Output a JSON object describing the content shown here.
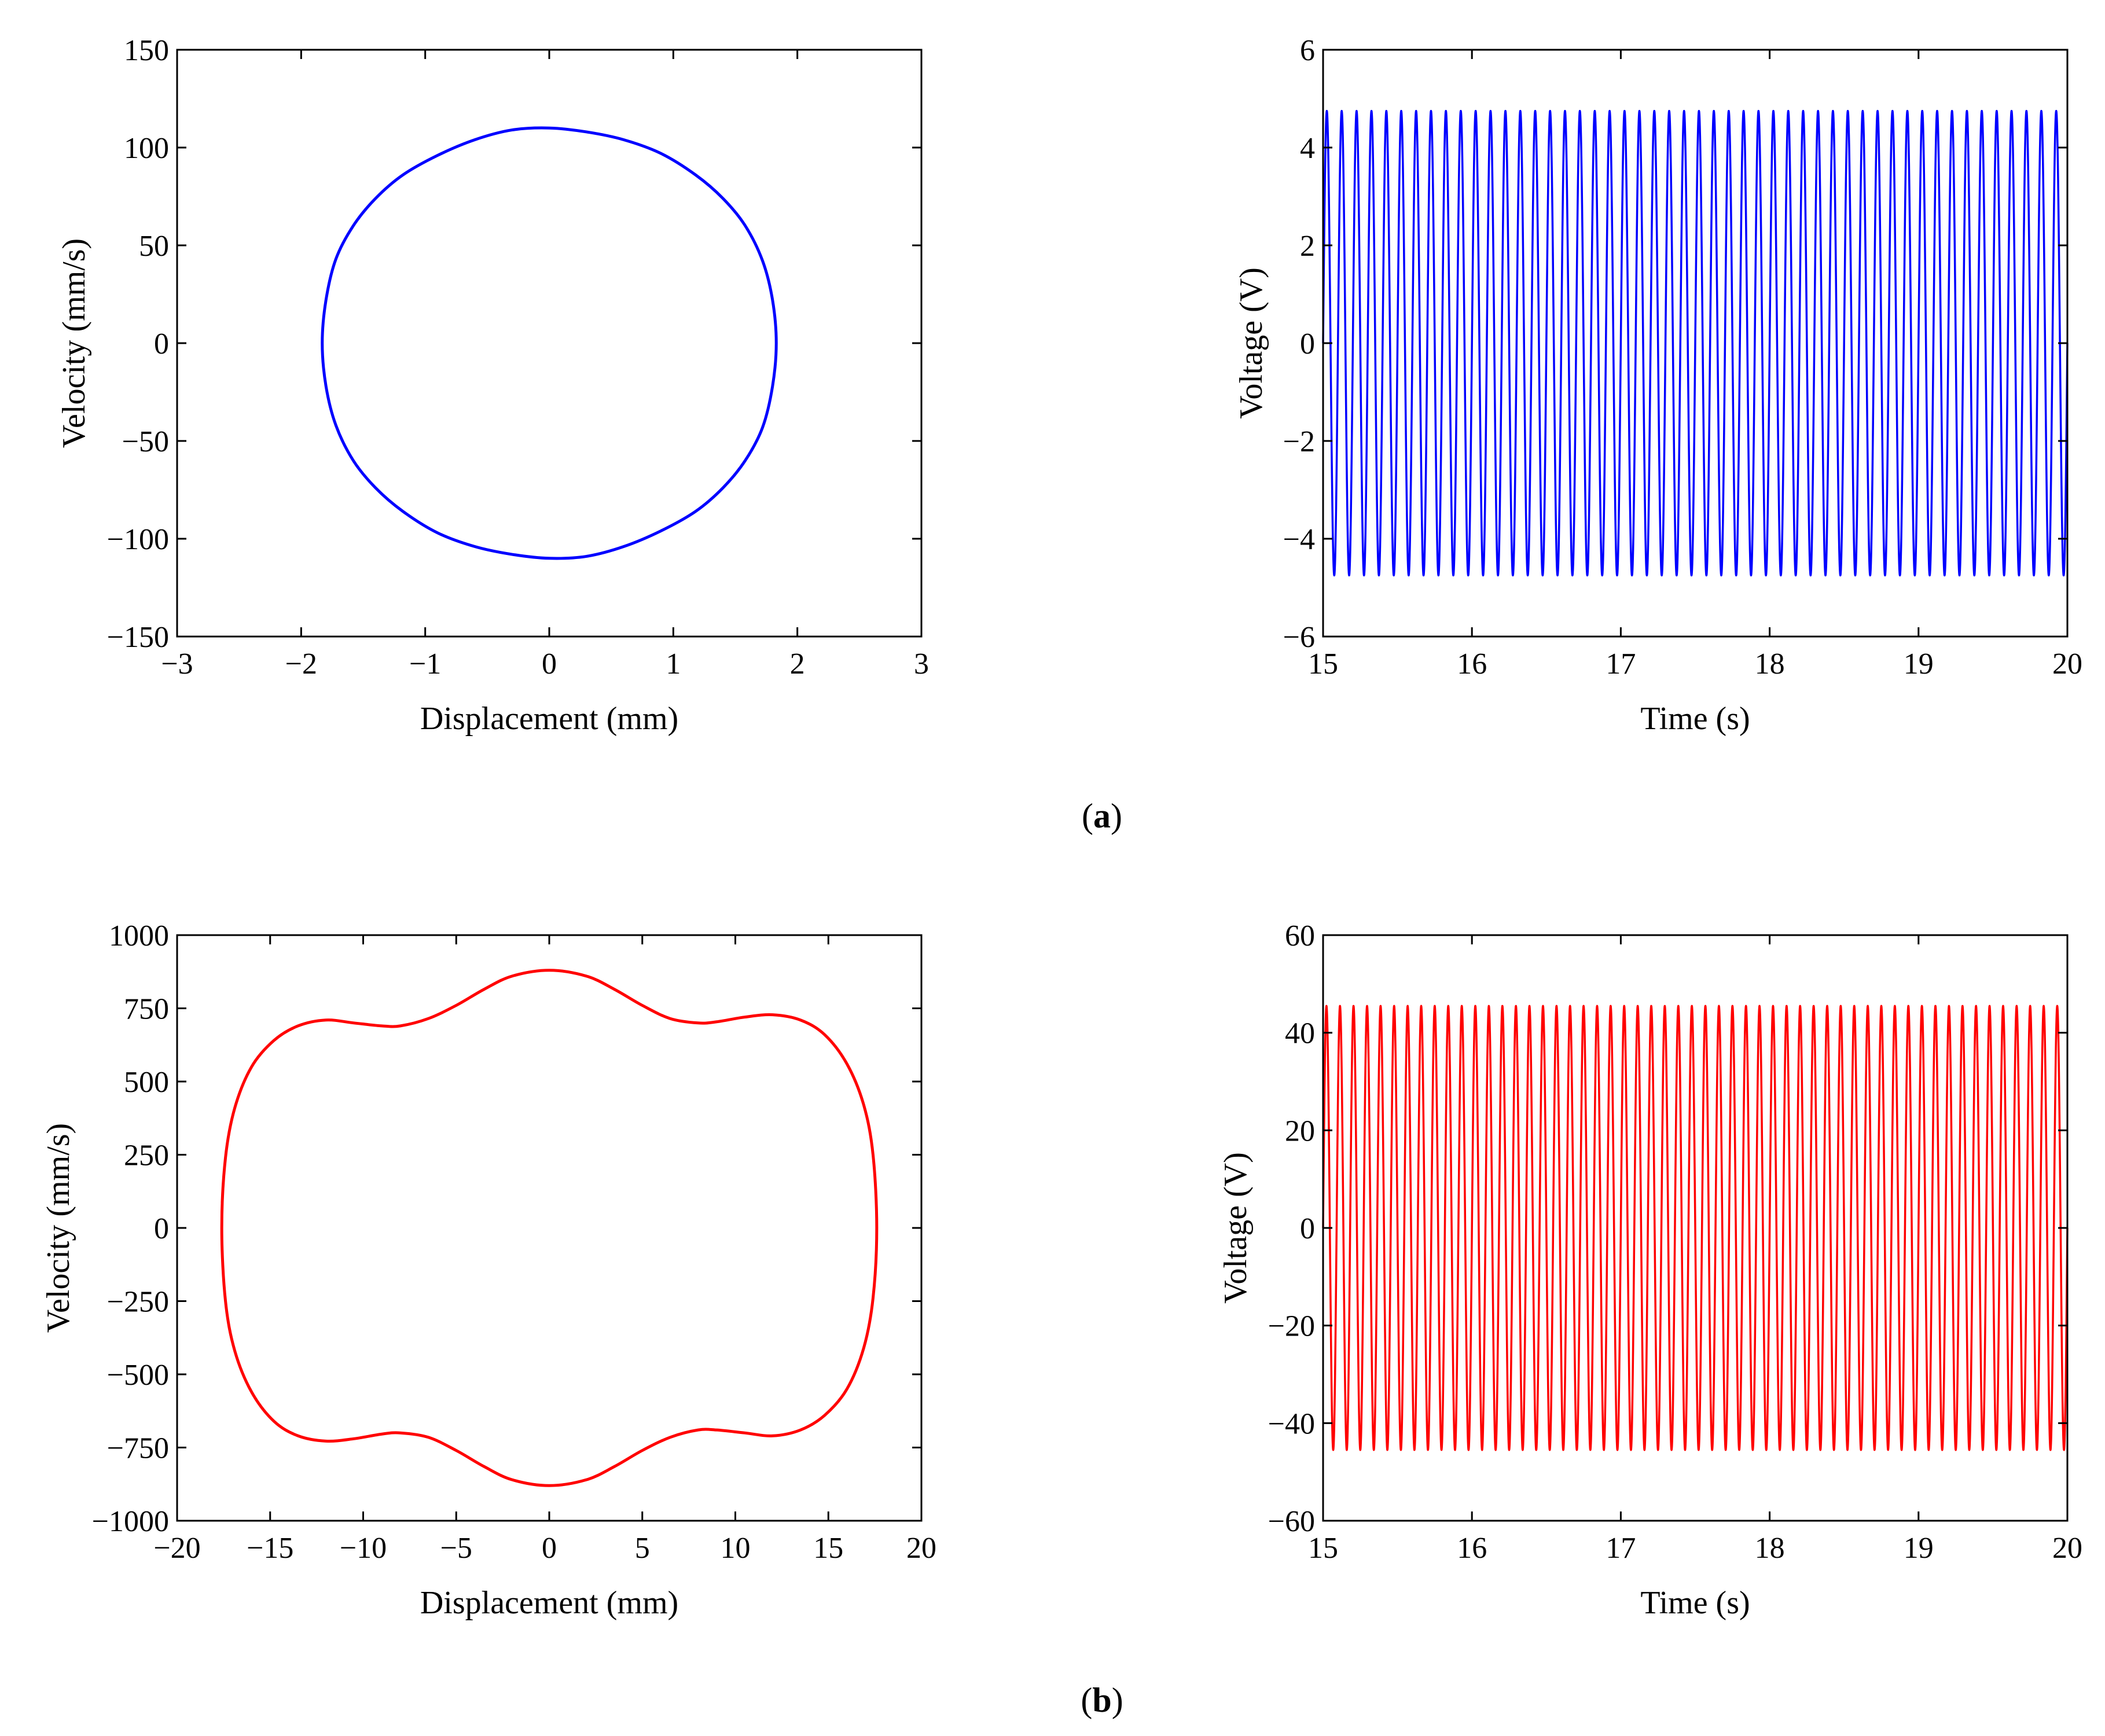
{
  "colors": {
    "row_a": "#0000ff",
    "row_b": "#ff0000",
    "axis": "#000000"
  },
  "panel_captions": [
    {
      "open": "(",
      "letter": "a",
      "close": ")"
    },
    {
      "open": "(",
      "letter": "b",
      "close": ")"
    }
  ],
  "chart_data": [
    {
      "id": "a-phase",
      "type": "line",
      "row": "a",
      "xlabel": "Displacement (mm)",
      "ylabel": "Velocity (mm/s)",
      "xlim": [
        -3,
        3
      ],
      "ylim": [
        -150,
        150
      ],
      "xticks": [
        -3,
        -2,
        -1,
        0,
        1,
        2,
        3
      ],
      "yticks": [
        -150,
        -100,
        -50,
        0,
        50,
        100,
        150
      ],
      "xtick_labels": [
        "−3",
        "−2",
        "−1",
        "0",
        "1",
        "2",
        "3"
      ],
      "ytick_labels": [
        "−150",
        "−100",
        "−50",
        "0",
        "50",
        "100",
        "150"
      ],
      "grid": false,
      "color": "#0000ff",
      "series": [
        {
          "closed": true,
          "x": [
            1.83,
            1.8,
            1.72,
            1.58,
            1.4,
            1.18,
            0.9,
            0.6,
            0.3,
            0.0,
            -0.3,
            -0.6,
            -0.9,
            -1.18,
            -1.4,
            -1.58,
            -1.72,
            -1.8,
            -1.83,
            -1.8,
            -1.72,
            -1.58,
            -1.4,
            -1.18,
            -0.9,
            -0.6,
            -0.3,
            0.0,
            0.3,
            0.6,
            0.9,
            1.18,
            1.4,
            1.58,
            1.72,
            1.8
          ],
          "y": [
            0,
            22,
            42,
            60,
            74,
            86,
            97,
            104,
            108,
            110,
            109,
            104,
            96,
            86,
            74,
            60,
            43,
            22,
            0,
            -22,
            -42,
            -60,
            -74,
            -86,
            -97,
            -104,
            -108,
            -110,
            -109,
            -104,
            -96,
            -86,
            -74,
            -60,
            -43,
            -22
          ]
        }
      ]
    },
    {
      "id": "a-voltage",
      "type": "line",
      "row": "a",
      "xlabel": "Time (s)",
      "ylabel": "Voltage (V)",
      "xlim": [
        15,
        20
      ],
      "ylim": [
        -6,
        6
      ],
      "xticks": [
        15,
        16,
        17,
        18,
        19,
        20
      ],
      "yticks": [
        -6,
        -4,
        -2,
        0,
        2,
        4,
        6
      ],
      "xtick_labels": [
        "15",
        "16",
        "17",
        "18",
        "19",
        "20"
      ],
      "ytick_labels": [
        "−6",
        "−4",
        "−2",
        "0",
        "2",
        "4",
        "6"
      ],
      "grid": false,
      "color": "#0000ff",
      "series": [
        {
          "waveform": "sine",
          "amplitude": 4.75,
          "frequency_hz": 10,
          "t_start": 15,
          "t_end": 20
        }
      ]
    },
    {
      "id": "b-phase",
      "type": "line",
      "row": "b",
      "xlabel": "Displacement (mm)",
      "ylabel": "Velocity (mm/s)",
      "xlim": [
        -20,
        20
      ],
      "ylim": [
        -1000,
        1000
      ],
      "xticks": [
        -20,
        -15,
        -10,
        -5,
        0,
        5,
        10,
        15,
        20
      ],
      "yticks": [
        -1000,
        -750,
        -500,
        -250,
        0,
        250,
        500,
        750,
        1000
      ],
      "xtick_labels": [
        "−20",
        "−15",
        "−10",
        "−5",
        "0",
        "5",
        "10",
        "15",
        "20"
      ],
      "ytick_labels": [
        "−1000",
        "−750",
        "−500",
        "−250",
        "0",
        "250",
        "500",
        "750",
        "1000"
      ],
      "grid": false,
      "color": "#ff0000",
      "series": [
        {
          "closed": true,
          "x": [
            17.6,
            17.4,
            16.9,
            16.0,
            14.8,
            13.5,
            12.0,
            10.5,
            9.0,
            8.0,
            6.5,
            5.0,
            3.5,
            2.0,
            0.0,
            -2.0,
            -3.5,
            -5.0,
            -6.5,
            -8.0,
            -9.0,
            -10.5,
            -12.0,
            -13.5,
            -14.8,
            -16.0,
            -16.9,
            -17.4,
            -17.6,
            -17.4,
            -16.9,
            -16.0,
            -14.8,
            -13.5,
            -12.0,
            -10.5,
            -9.0,
            -8.0,
            -6.5,
            -5.0,
            -3.5,
            -2.0,
            0.0,
            2.0,
            3.5,
            5.0,
            6.5,
            8.0,
            9.0,
            10.5,
            12.0,
            13.5,
            14.8,
            16.0,
            16.9,
            17.4
          ],
          "y": [
            0,
            250,
            420,
            560,
            660,
            710,
            728,
            720,
            704,
            700,
            715,
            760,
            815,
            860,
            880,
            860,
            815,
            760,
            715,
            690,
            690,
            700,
            710,
            690,
            640,
            550,
            410,
            240,
            0,
            -250,
            -420,
            -560,
            -660,
            -710,
            -728,
            -720,
            -704,
            -700,
            -715,
            -760,
            -815,
            -860,
            -880,
            -860,
            -815,
            -760,
            -715,
            -690,
            -690,
            -700,
            -710,
            -690,
            -640,
            -550,
            -410,
            -240
          ]
        }
      ]
    },
    {
      "id": "b-voltage",
      "type": "line",
      "row": "b",
      "xlabel": "Time (s)",
      "ylabel": "Voltage (V)",
      "xlim": [
        15,
        20
      ],
      "ylim": [
        -60,
        60
      ],
      "xticks": [
        15,
        16,
        17,
        18,
        19,
        20
      ],
      "yticks": [
        -60,
        -40,
        -20,
        0,
        20,
        40,
        60
      ],
      "xtick_labels": [
        "15",
        "16",
        "17",
        "18",
        "19",
        "20"
      ],
      "ytick_labels": [
        "−60",
        "−40",
        "−20",
        "0",
        "20",
        "40",
        "60"
      ],
      "grid": false,
      "color": "#ff0000",
      "series": [
        {
          "waveform": "sine",
          "amplitude": 45.5,
          "frequency_hz": 11,
          "t_start": 15,
          "t_end": 20
        }
      ]
    }
  ]
}
